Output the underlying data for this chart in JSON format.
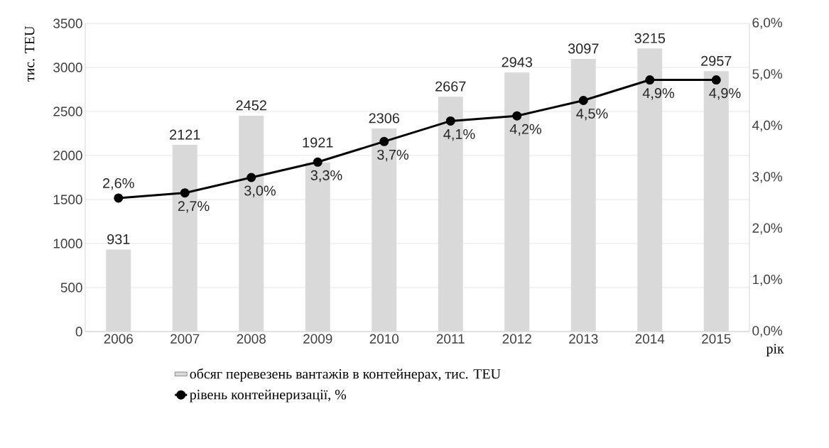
{
  "chart_data": {
    "type": "bar",
    "ylabel": "тис. TEU",
    "xlabel": "рік",
    "categories": [
      "2006",
      "2007",
      "2008",
      "2009",
      "2010",
      "2011",
      "2012",
      "2013",
      "2014",
      "2015"
    ],
    "series": [
      {
        "name": "обсяг перевезень вантажів в контейнерах, тис. TEU",
        "color": "#d9d9d9",
        "values": [
          931,
          2121,
          2452,
          1921,
          2306,
          2667,
          2943,
          3097,
          3215,
          2957
        ],
        "value_labels": [
          "931",
          "2121",
          "2452",
          "1921",
          "2306",
          "2667",
          "2943",
          "3097",
          "3215",
          "2957"
        ]
      },
      {
        "name": "рівень контейнеризації, %",
        "type": "line",
        "axis": "y2",
        "color": "#000000",
        "values": [
          2.6,
          2.7,
          3.0,
          3.3,
          3.7,
          4.1,
          4.2,
          4.5,
          4.9,
          4.9
        ],
        "value_labels": [
          "2,6%",
          "2,7%",
          "3,0%",
          "3,3%",
          "3,7%",
          "4,1%",
          "4,2%",
          "4,5%",
          "4,9%",
          "4,9%"
        ]
      }
    ],
    "ylim": [
      0,
      3500
    ],
    "yticks": [
      0,
      500,
      1000,
      1500,
      2000,
      2500,
      3000,
      3500
    ],
    "y2lim": [
      0,
      6
    ],
    "y2ticks": [
      {
        "value": 0,
        "label": "0,0%"
      },
      {
        "value": 1,
        "label": "1,0%"
      },
      {
        "value": 2,
        "label": "2,0%"
      },
      {
        "value": 3,
        "label": "3,0%"
      },
      {
        "value": 4,
        "label": "4,0%"
      },
      {
        "value": 5,
        "label": "5,0%"
      },
      {
        "value": 6,
        "label": "6,0%"
      }
    ],
    "grid": "y",
    "legend": "bottom",
    "marker": "circle",
    "line_style": "solid"
  }
}
